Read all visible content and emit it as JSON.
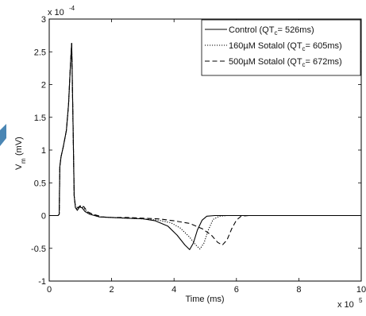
{
  "chart_data": {
    "type": "line",
    "xlabel": "Time (ms)",
    "ylabel": "V",
    "ylabel_subscript": "m",
    "ylabel_unit": "(mV)",
    "x_exponent": {
      "base": "x 10",
      "power": "5"
    },
    "y_exponent": {
      "base": "x 10",
      "power": "-4"
    },
    "xlim": [
      0,
      10
    ],
    "ylim": [
      -1,
      3
    ],
    "xticks": [
      0,
      2,
      4,
      6,
      8,
      10
    ],
    "yticks": [
      -1,
      -0.5,
      0,
      0.5,
      1,
      1.5,
      2,
      2.5,
      3
    ],
    "xtick_labels": [
      "0",
      "2",
      "4",
      "6",
      "8",
      "10"
    ],
    "ytick_labels": [
      "-1",
      "-0.5",
      "0",
      "0.5",
      "1",
      "1.5",
      "2",
      "2.5",
      "3"
    ],
    "grid": false,
    "legend_position": "top-right",
    "series": [
      {
        "name": "Control (QTc= 526ms)",
        "legend_main": "Control (QT",
        "legend_sub": "c",
        "legend_tail": "= 526ms)",
        "style": "solid",
        "points": [
          [
            0,
            0
          ],
          [
            0.28,
            0
          ],
          [
            0.32,
            0.02
          ],
          [
            0.34,
            0.75
          ],
          [
            0.38,
            0.9
          ],
          [
            0.45,
            1.05
          ],
          [
            0.55,
            1.3
          ],
          [
            0.62,
            1.7
          ],
          [
            0.68,
            2.3
          ],
          [
            0.72,
            2.63
          ],
          [
            0.76,
            1.5
          ],
          [
            0.8,
            0.3
          ],
          [
            0.84,
            0.12
          ],
          [
            0.9,
            0.08
          ],
          [
            0.97,
            0.13
          ],
          [
            1.05,
            0.12
          ],
          [
            1.15,
            0.06
          ],
          [
            1.3,
            0.02
          ],
          [
            1.6,
            -0.02
          ],
          [
            2.0,
            -0.03
          ],
          [
            2.5,
            -0.04
          ],
          [
            3.0,
            -0.05
          ],
          [
            3.4,
            -0.08
          ],
          [
            3.8,
            -0.16
          ],
          [
            4.1,
            -0.3
          ],
          [
            4.35,
            -0.45
          ],
          [
            4.5,
            -0.52
          ],
          [
            4.62,
            -0.42
          ],
          [
            4.75,
            -0.22
          ],
          [
            4.9,
            -0.07
          ],
          [
            5.05,
            -0.01
          ],
          [
            5.3,
            0
          ],
          [
            10,
            0
          ]
        ]
      },
      {
        "name": "160µM Sotalol (QTc= 605ms)",
        "legend_main": "160µM Sotalol (QT",
        "legend_sub": "c",
        "legend_tail": "= 605ms)",
        "style": "dotted",
        "points": [
          [
            0,
            0
          ],
          [
            0.28,
            0
          ],
          [
            0.32,
            0.02
          ],
          [
            0.34,
            0.75
          ],
          [
            0.38,
            0.9
          ],
          [
            0.45,
            1.05
          ],
          [
            0.55,
            1.3
          ],
          [
            0.62,
            1.7
          ],
          [
            0.68,
            2.3
          ],
          [
            0.72,
            2.63
          ],
          [
            0.76,
            1.5
          ],
          [
            0.8,
            0.3
          ],
          [
            0.84,
            0.13
          ],
          [
            0.9,
            0.1
          ],
          [
            1.0,
            0.14
          ],
          [
            1.1,
            0.12
          ],
          [
            1.2,
            0.06
          ],
          [
            1.35,
            0.02
          ],
          [
            1.6,
            -0.02
          ],
          [
            2.0,
            -0.03
          ],
          [
            2.5,
            -0.04
          ],
          [
            3.0,
            -0.05
          ],
          [
            3.5,
            -0.07
          ],
          [
            3.9,
            -0.11
          ],
          [
            4.2,
            -0.19
          ],
          [
            4.5,
            -0.33
          ],
          [
            4.7,
            -0.45
          ],
          [
            4.83,
            -0.51
          ],
          [
            4.96,
            -0.42
          ],
          [
            5.1,
            -0.22
          ],
          [
            5.25,
            -0.06
          ],
          [
            5.45,
            -0.01
          ],
          [
            5.7,
            0
          ],
          [
            10,
            0
          ]
        ]
      },
      {
        "name": "500µM Sotalol (QTc= 672ms)",
        "legend_main": "500µM Sotalol (QT",
        "legend_sub": "c",
        "legend_tail": "= 672ms)",
        "style": "dashed",
        "points": [
          [
            0,
            0
          ],
          [
            0.28,
            0
          ],
          [
            0.32,
            0.02
          ],
          [
            0.34,
            0.75
          ],
          [
            0.38,
            0.9
          ],
          [
            0.45,
            1.05
          ],
          [
            0.55,
            1.3
          ],
          [
            0.62,
            1.7
          ],
          [
            0.68,
            2.3
          ],
          [
            0.72,
            2.63
          ],
          [
            0.76,
            1.5
          ],
          [
            0.8,
            0.3
          ],
          [
            0.84,
            0.14
          ],
          [
            0.92,
            0.12
          ],
          [
            1.02,
            0.16
          ],
          [
            1.12,
            0.13
          ],
          [
            1.22,
            0.06
          ],
          [
            1.4,
            0.02
          ],
          [
            1.7,
            -0.02
          ],
          [
            2.0,
            -0.03
          ],
          [
            2.5,
            -0.03
          ],
          [
            3.0,
            -0.04
          ],
          [
            3.5,
            -0.05
          ],
          [
            4.0,
            -0.08
          ],
          [
            4.5,
            -0.12
          ],
          [
            4.9,
            -0.2
          ],
          [
            5.2,
            -0.3
          ],
          [
            5.4,
            -0.41
          ],
          [
            5.55,
            -0.45
          ],
          [
            5.7,
            -0.37
          ],
          [
            5.85,
            -0.2
          ],
          [
            6.0,
            -0.07
          ],
          [
            6.15,
            -0.01
          ],
          [
            6.4,
            0
          ],
          [
            10,
            0
          ]
        ]
      }
    ]
  }
}
